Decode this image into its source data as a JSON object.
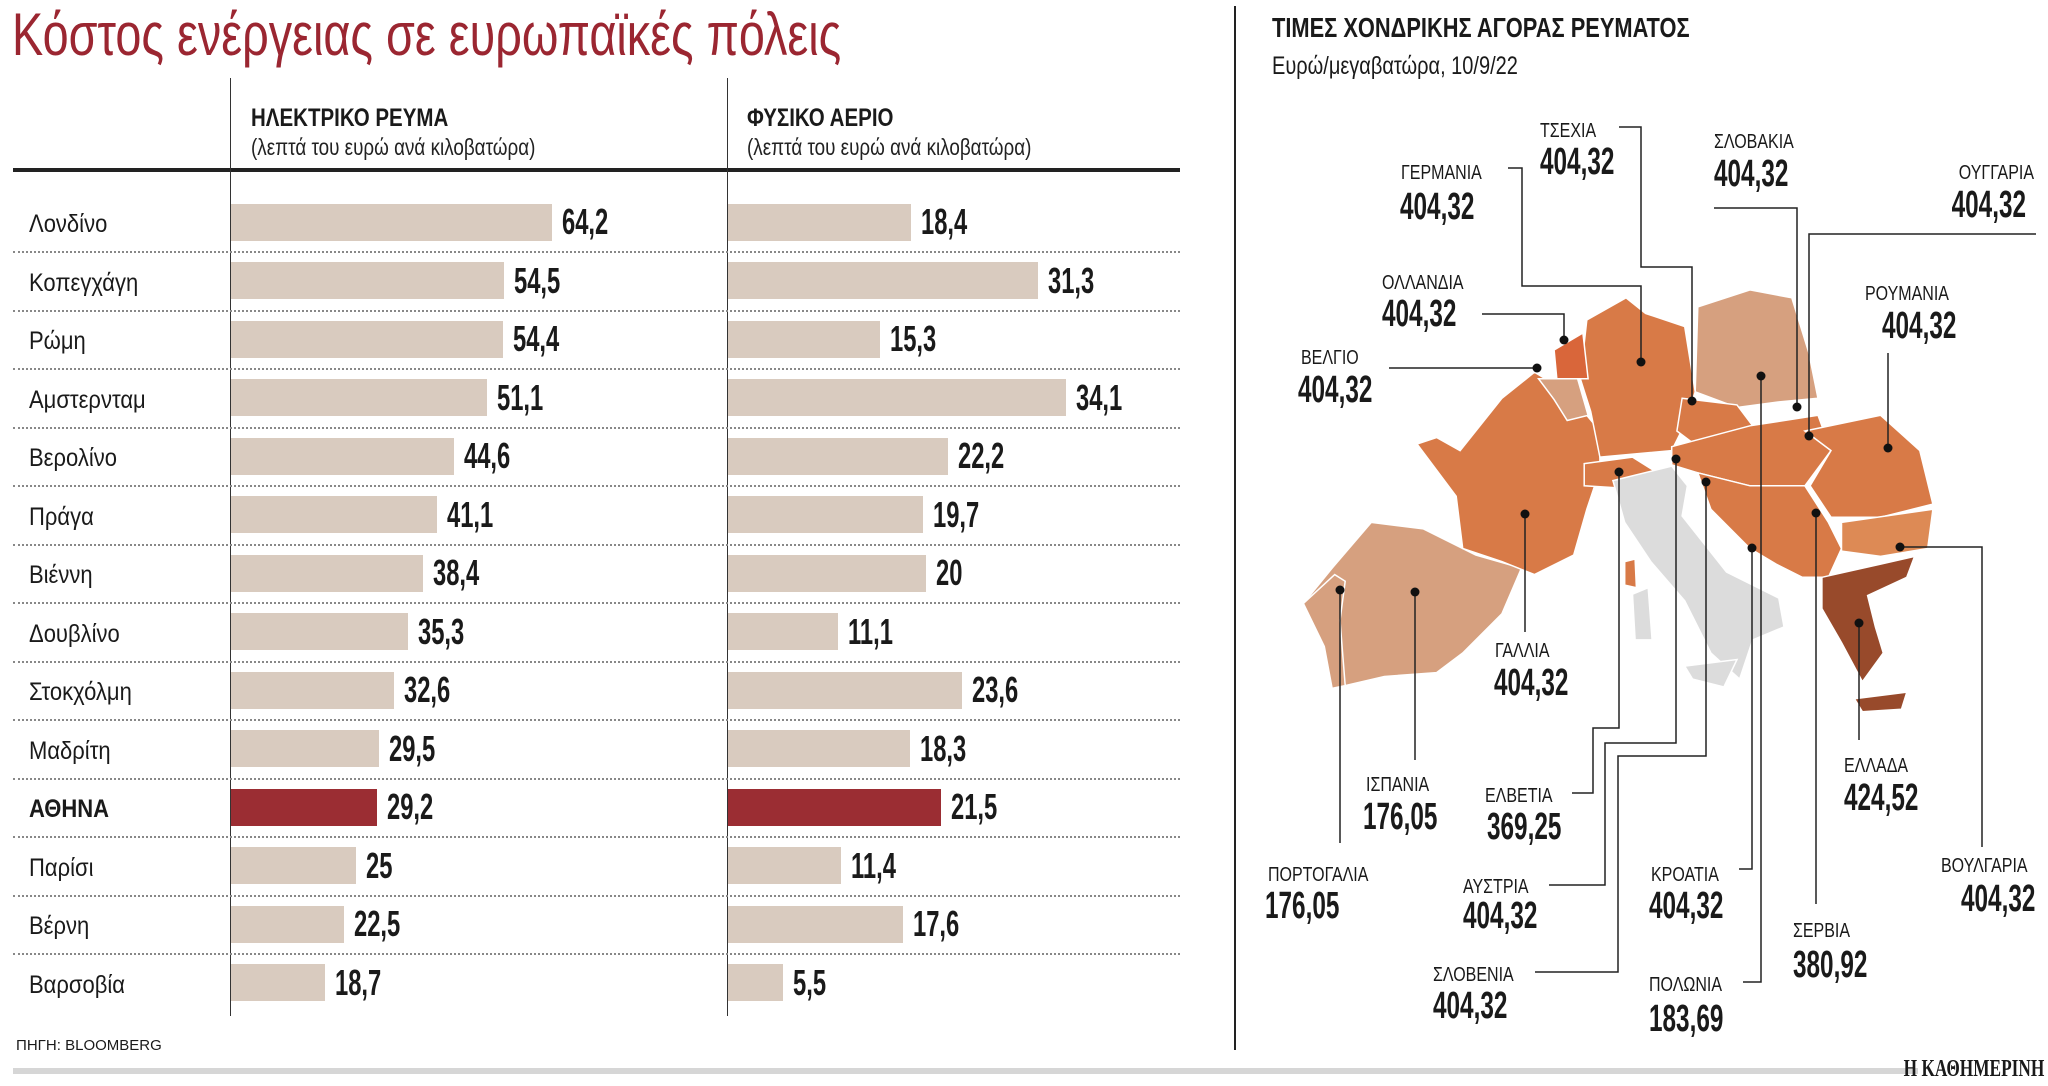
{
  "title": "Κόστος ενέργειας σε ευρωπαϊκές πόλεις",
  "chart_data": [
    {
      "type": "bar",
      "orientation": "horizontal",
      "title": "ΗΛΕΚΤΡΙΚΟ ΡΕΥΜΑ",
      "subtitle": "(λεπτά του ευρώ ανά κιλοβατώρα)",
      "categories": [
        "Λονδίνο",
        "Κοπεγχάγη",
        "Ρώμη",
        "Αμστερνταμ",
        "Βερολίνο",
        "Πράγα",
        "Βιέννη",
        "Δουβλίνο",
        "Στοκχόλμη",
        "Μαδρίτη",
        "ΑΘΗΝΑ",
        "Παρίσι",
        "Βέρνη",
        "Βαρσοβία"
      ],
      "values": [
        64.2,
        54.5,
        54.4,
        51.1,
        44.6,
        41.1,
        38.4,
        35.3,
        32.6,
        29.5,
        29.2,
        25,
        22.5,
        18.7
      ],
      "value_labels": [
        "64,2",
        "54,5",
        "54,4",
        "51,1",
        "44,6",
        "41,1",
        "38,4",
        "35,3",
        "32,6",
        "29,5",
        "29,2",
        "25",
        "22,5",
        "18,7"
      ],
      "highlight": "ΑΘΗΝΑ"
    },
    {
      "type": "bar",
      "orientation": "horizontal",
      "title": "ΦΥΣΙΚΟ ΑΕΡΙΟ",
      "subtitle": "(λεπτά του ευρώ ανά κιλοβατώρα)",
      "categories": [
        "Λονδίνο",
        "Κοπεγχάγη",
        "Ρώμη",
        "Αμστερνταμ",
        "Βερολίνο",
        "Πράγα",
        "Βιέννη",
        "Δουβλίνο",
        "Στοκχόλμη",
        "Μαδρίτη",
        "ΑΘΗΝΑ",
        "Παρίσι",
        "Βέρνη",
        "Βαρσοβία"
      ],
      "values": [
        18.4,
        31.3,
        15.3,
        34.1,
        22.2,
        19.7,
        20,
        11.1,
        23.6,
        18.3,
        21.5,
        11.4,
        17.6,
        5.5
      ],
      "value_labels": [
        "18,4",
        "31,3",
        "15,3",
        "34,1",
        "22,2",
        "19,7",
        "20",
        "11,1",
        "23,6",
        "18,3",
        "21,5",
        "11,4",
        "17,6",
        "5,5"
      ],
      "highlight": "ΑΘΗΝΑ"
    }
  ],
  "colors": {
    "bar": "#d9cbbf",
    "highlight": "#9b2d33",
    "title": "#9b2631"
  },
  "map": {
    "title": "ΤΙΜΕΣ ΧΟΝΔΡΙΚΗΣ ΑΓΟΡΑΣ ΡΕΥΜΑΤΟΣ",
    "subtitle": "Ευρώ/μεγαβατώρα, 10/9/22",
    "colors": {
      "high": "#d87a47",
      "low": "#d6a07f",
      "greece": "#984a2b",
      "no_data": "#dcdcdc"
    },
    "countries": [
      {
        "label": "ΤΣΕΧΙΑ",
        "value": "404,32"
      },
      {
        "label": "ΓΕΡΜΑΝΙΑ",
        "value": "404,32"
      },
      {
        "label": "ΣΛΟΒΑΚΙΑ",
        "value": "404,32"
      },
      {
        "label": "ΟΥΓΓΑΡΙΑ",
        "value": "404,32"
      },
      {
        "label": "ΟΛΛΑΝΔΙΑ",
        "value": "404,32"
      },
      {
        "label": "ΒΕΛΓΙΟ",
        "value": "404,32"
      },
      {
        "label": "ΡΟΥΜΑΝΙΑ",
        "value": "404,32"
      },
      {
        "label": "ΓΑΛΛΙΑ",
        "value": "404,32"
      },
      {
        "label": "ΙΣΠΑΝΙΑ",
        "value": "176,05"
      },
      {
        "label": "ΠΟΡΤΟΓΑΛΙΑ",
        "value": "176,05"
      },
      {
        "label": "ΕΛΒΕΤΙΑ",
        "value": "369,25"
      },
      {
        "label": "ΑΥΣΤΡΙΑ",
        "value": "404,32"
      },
      {
        "label": "ΣΛΟΒΕΝΙΑ",
        "value": "404,32"
      },
      {
        "label": "ΚΡΟΑΤΙΑ",
        "value": "404,32"
      },
      {
        "label": "ΠΟΛΩΝΙΑ",
        "value": "183,69"
      },
      {
        "label": "ΣΕΡΒΙΑ",
        "value": "380,92"
      },
      {
        "label": "ΕΛΛΑΔΑ",
        "value": "424,52"
      },
      {
        "label": "ΒΟΥΛΓΑΡΙΑ",
        "value": "404,32"
      }
    ]
  },
  "source": "ΠΗΓΗ: BLOOMBERG",
  "brand": "Η ΚΑΘΗΜΕΡΙΝΗ"
}
